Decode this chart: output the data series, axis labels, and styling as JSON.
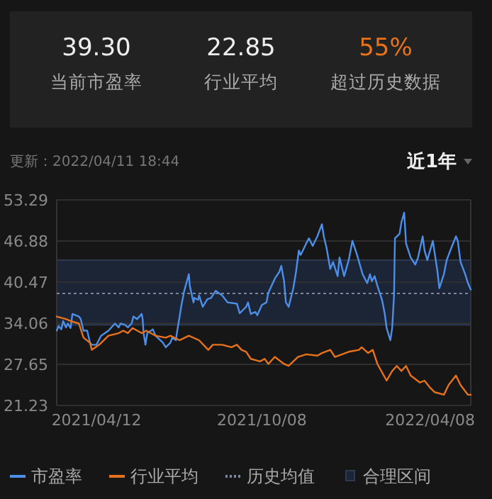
{
  "chart_data": [
    {
      "type": "other",
      "annotations": [
        "39.30",
        "当前市盈率",
        "22.85",
        "行业平均",
        "55%",
        "超过历史数据"
      ]
    },
    {
      "type": "line",
      "subtitle": "更新：2022/04/11 18:44",
      "annotations": [
        "近1年"
      ],
      "xlim": [
        "2021-02-28",
        "2022-05-22"
      ],
      "xticks": [
        {
          "value": "2021-04-12",
          "label": "2021/04/12"
        },
        {
          "value": "2021-10-08",
          "label": "2021/10/08"
        },
        {
          "value": "2022-04-08",
          "label": "2022/04/08"
        }
      ],
      "ylim": [
        21.23,
        53.29
      ],
      "yticks": [
        21.23,
        27.65,
        34.06,
        40.47,
        46.88,
        53.29
      ],
      "grid": "y",
      "legend": "bottom",
      "marker": "none",
      "line_style": "solid",
      "ref_lines": [
        {
          "axis": "y",
          "value": 38.7,
          "label": "历史均值",
          "color": "#7d8799",
          "line_style": "dotted"
        }
      ],
      "bands": [
        {
          "axis": "y",
          "from": 33.8,
          "to": 43.9,
          "label": "合理区间",
          "color": "#1c2536"
        }
      ],
      "series": [
        {
          "name": "市盈率",
          "color": "#4d8fe8",
          "x": [
            "2021-02-28",
            "2021-03-02",
            "2021-03-05",
            "2021-03-07",
            "2021-03-10",
            "2021-03-12",
            "2021-03-15",
            "2021-03-17",
            "2021-03-24",
            "2021-03-26",
            "2021-03-29",
            "2021-04-02",
            "2021-04-05",
            "2021-04-07",
            "2021-04-12",
            "2021-04-17",
            "2021-04-25",
            "2021-05-02",
            "2021-05-06",
            "2021-05-08",
            "2021-05-13",
            "2021-05-16",
            "2021-05-20",
            "2021-05-22",
            "2021-05-26",
            "2021-05-31",
            "2021-06-01",
            "2021-06-02",
            "2021-06-04",
            "2021-06-06",
            "2021-06-12",
            "2021-06-15",
            "2021-06-23",
            "2021-06-26",
            "2021-07-01",
            "2021-07-03",
            "2021-07-07",
            "2021-07-08",
            "2021-07-11",
            "2021-07-13",
            "2021-07-16",
            "2021-07-21",
            "2021-07-22",
            "2021-07-26",
            "2021-07-27",
            "2021-07-31",
            "2021-08-01",
            "2021-08-05",
            "2021-08-10",
            "2021-08-14",
            "2021-08-19",
            "2021-08-26",
            "2021-09-01",
            "2021-09-11",
            "2021-09-14",
            "2021-09-21",
            "2021-09-23",
            "2021-09-26",
            "2021-10-01",
            "2021-10-03",
            "2021-10-08",
            "2021-10-13",
            "2021-10-15",
            "2021-10-22",
            "2021-10-27",
            "2021-10-29",
            "2021-11-01",
            "2021-11-03",
            "2021-11-06",
            "2021-11-11",
            "2021-11-14",
            "2021-11-17",
            "2021-11-19",
            "2021-11-25",
            "2021-11-28",
            "2021-12-02",
            "2021-12-07",
            "2021-12-12",
            "2021-12-14",
            "2021-12-17",
            "2021-12-21",
            "2021-12-24",
            "2021-12-29",
            "2021-12-31",
            "2022-01-05",
            "2022-01-10",
            "2022-01-14",
            "2022-01-19",
            "2022-01-25",
            "2022-01-30",
            "2022-02-02",
            "2022-02-04",
            "2022-02-07",
            "2022-02-10",
            "2022-02-15",
            "2022-02-18",
            "2022-02-20",
            "2022-02-24",
            "2022-02-26",
            "2022-02-28",
            "2022-03-01",
            "2022-03-06",
            "2022-03-08",
            "2022-03-11",
            "2022-03-13",
            "2022-03-18",
            "2022-03-23",
            "2022-03-26",
            "2022-03-31",
            "2022-04-02",
            "2022-04-05",
            "2022-04-11",
            "2022-04-16",
            "2022-04-18",
            "2022-04-23",
            "2022-04-26",
            "2022-05-01",
            "2022-05-06",
            "2022-05-08",
            "2022-05-11",
            "2022-05-16",
            "2022-05-19",
            "2022-05-22"
          ],
          "values": [
            32.9,
            33.6,
            33.1,
            34.4,
            33.4,
            34.0,
            33.3,
            35.5,
            35.1,
            34.7,
            32.9,
            32.9,
            31.0,
            30.7,
            30.7,
            32.1,
            32.9,
            34.0,
            33.4,
            34.0,
            33.8,
            33.4,
            34.0,
            35.1,
            34.7,
            35.5,
            34.7,
            32.5,
            30.7,
            32.5,
            33.1,
            32.1,
            31.0,
            30.3,
            31.0,
            31.8,
            31.4,
            32.5,
            35.1,
            36.9,
            39.1,
            41.7,
            39.9,
            37.3,
            38.0,
            37.7,
            38.4,
            36.6,
            37.8,
            38.0,
            39.1,
            38.4,
            37.3,
            37.1,
            35.6,
            36.6,
            37.3,
            35.5,
            35.8,
            35.3,
            36.9,
            37.3,
            38.8,
            41.0,
            42.1,
            43.0,
            40.6,
            37.3,
            36.6,
            39.5,
            42.1,
            45.4,
            44.7,
            46.5,
            47.3,
            46.1,
            47.6,
            49.5,
            47.6,
            45.8,
            42.5,
            43.6,
            41.4,
            44.3,
            41.4,
            43.9,
            46.9,
            44.7,
            41.7,
            40.3,
            41.7,
            40.6,
            41.4,
            39.9,
            37.7,
            35.5,
            33.3,
            31.4,
            33.3,
            38.4,
            47.3,
            48.0,
            49.8,
            51.3,
            46.5,
            44.3,
            43.2,
            44.3,
            47.6,
            45.4,
            43.9,
            46.9,
            42.1,
            39.5,
            41.7,
            43.9,
            45.8,
            47.6,
            46.9,
            43.6,
            41.7,
            40.3,
            39.3
          ]
        },
        {
          "name": "行业平均",
          "color": "#e8721c",
          "x": [
            "2021-02-28",
            "2021-03-10",
            "2021-03-15",
            "2021-03-24",
            "2021-03-29",
            "2021-04-05",
            "2021-04-07",
            "2021-04-15",
            "2021-04-25",
            "2021-05-06",
            "2021-05-11",
            "2021-05-16",
            "2021-05-21",
            "2021-05-31",
            "2021-06-05",
            "2021-06-15",
            "2021-06-26",
            "2021-07-01",
            "2021-07-11",
            "2021-07-21",
            "2021-08-01",
            "2021-08-11",
            "2021-08-16",
            "2021-08-26",
            "2021-09-05",
            "2021-09-11",
            "2021-09-16",
            "2021-09-21",
            "2021-09-26",
            "2021-10-06",
            "2021-10-11",
            "2021-10-15",
            "2021-10-22",
            "2021-11-01",
            "2021-11-06",
            "2021-11-16",
            "2021-11-25",
            "2021-12-07",
            "2021-12-12",
            "2021-12-21",
            "2021-12-26",
            "2022-01-10",
            "2022-01-21",
            "2022-01-24",
            "2022-01-31",
            "2022-02-05",
            "2022-02-10",
            "2022-02-20",
            "2022-02-26",
            "2022-03-03",
            "2022-03-08",
            "2022-03-13",
            "2022-03-18",
            "2022-03-28",
            "2022-04-02",
            "2022-04-08",
            "2022-04-13",
            "2022-04-23",
            "2022-04-28",
            "2022-05-06",
            "2022-05-11",
            "2022-05-19",
            "2022-05-22"
          ],
          "values": [
            35.1,
            34.7,
            34.4,
            34.0,
            31.8,
            31.0,
            29.9,
            30.7,
            32.1,
            32.5,
            32.9,
            32.5,
            33.3,
            32.5,
            32.9,
            32.1,
            31.8,
            32.1,
            31.4,
            32.1,
            31.4,
            29.9,
            30.7,
            30.7,
            30.3,
            30.7,
            29.9,
            29.6,
            28.5,
            28.1,
            28.5,
            27.7,
            28.8,
            27.7,
            27.4,
            28.8,
            29.2,
            29.0,
            29.4,
            29.9,
            28.8,
            29.6,
            29.9,
            30.3,
            29.4,
            29.9,
            27.7,
            25.1,
            26.6,
            27.4,
            26.6,
            27.4,
            25.9,
            24.8,
            25.1,
            24.0,
            23.3,
            22.9,
            24.4,
            25.9,
            24.4,
            22.9,
            22.9
          ]
        }
      ]
    }
  ]
}
